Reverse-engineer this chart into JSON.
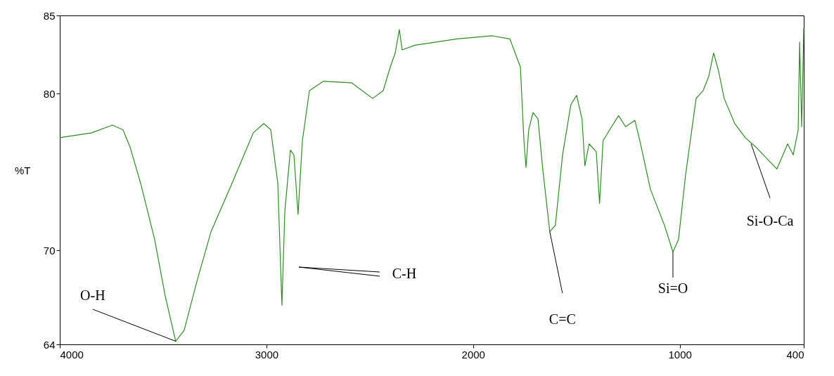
{
  "chart_data": {
    "type": "line",
    "ylabel": "%T",
    "x": [
      4000,
      3847,
      3745,
      3694,
      3660,
      3609,
      3541,
      3490,
      3439,
      3398,
      3337,
      3268,
      3166,
      3064,
      3013,
      2979,
      2945,
      2925,
      2911,
      2884,
      2867,
      2847,
      2826,
      2792,
      2724,
      2588,
      2486,
      2435,
      2401,
      2377,
      2357,
      2343,
      2282,
      2078,
      1907,
      1822,
      1771,
      1754,
      1744,
      1731,
      1710,
      1686,
      1663,
      1629,
      1602,
      1567,
      1527,
      1499,
      1473,
      1459,
      1439,
      1404,
      1388,
      1371,
      1330,
      1296,
      1262,
      1217,
      1193,
      1142,
      1074,
      1033,
      1006,
      972,
      921,
      887,
      860,
      836,
      813,
      785,
      734,
      683,
      632,
      581,
      530,
      478,
      451,
      427,
      420,
      410,
      400
    ],
    "series": [
      {
        "color": "#2e8b22",
        "values": [
          77.2,
          77.5,
          78.0,
          77.7,
          76.6,
          74.3,
          70.7,
          67.1,
          64.2,
          64.9,
          68.0,
          71.2,
          74.3,
          77.5,
          78.1,
          77.7,
          74.3,
          66.5,
          72.5,
          76.4,
          76.1,
          72.3,
          77.0,
          80.2,
          80.8,
          80.7,
          79.7,
          80.2,
          81.7,
          82.6,
          84.1,
          82.8,
          83.1,
          83.5,
          83.7,
          83.5,
          81.7,
          77.0,
          75.3,
          77.7,
          78.8,
          78.4,
          75.2,
          71.2,
          71.6,
          76.1,
          79.3,
          79.9,
          78.4,
          75.4,
          76.8,
          76.3,
          73.0,
          77.0,
          77.9,
          78.6,
          77.9,
          78.3,
          77.0,
          73.9,
          71.6,
          69.9,
          70.7,
          74.8,
          79.7,
          80.2,
          81.1,
          82.6,
          81.5,
          79.7,
          78.1,
          77.2,
          76.6,
          75.9,
          75.2,
          76.8,
          76.1,
          77.7,
          83.3,
          77.9,
          84.2
        ]
      }
    ],
    "xlim": [
      4000,
      400
    ],
    "xticks": [
      4000,
      3000,
      2000,
      1000,
      400
    ],
    "ylim": [
      64,
      85
    ],
    "yticks": [
      64,
      70,
      80,
      85
    ],
    "grid": false,
    "annotations": [
      {
        "text": "O-H",
        "x": 3439,
        "y": 64.2
      },
      "C-H",
      {
        "text": "C=C",
        "x": 1629,
        "y": 71.2
      },
      {
        "text": "Si=O",
        "x": 1033,
        "y": 69.9
      },
      {
        "text": "Si-O-Ca",
        "x": 655,
        "y": 76.8
      }
    ]
  }
}
